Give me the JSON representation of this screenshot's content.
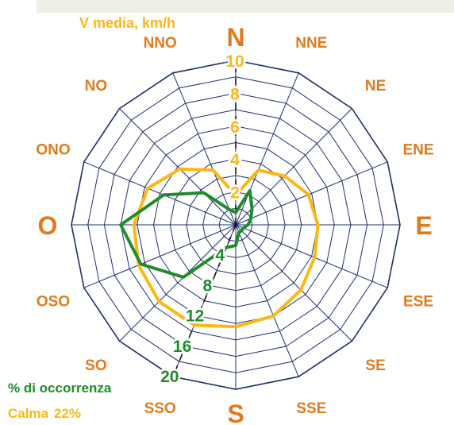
{
  "chart_data": {
    "type": "polar-line",
    "directions": [
      "N",
      "NNE",
      "NE",
      "ENE",
      "E",
      "ESE",
      "SE",
      "SSE",
      "S",
      "SSO",
      "SO",
      "OSO",
      "O",
      "ONO",
      "NO",
      "NNO"
    ],
    "speed_axis": {
      "label": "V media, km/h",
      "ticks": [
        "2",
        "4",
        "6",
        "8",
        "10"
      ],
      "range": [
        0,
        10
      ]
    },
    "occurrence_axis": {
      "label": "% di occorrenza",
      "ticks": [
        "4",
        "8",
        "12",
        "16",
        "20"
      ],
      "range": [
        0,
        20
      ]
    },
    "series": [
      {
        "color": "#fcb713",
        "values": [
          1.8,
          3.6,
          4.2,
          4.8,
          5.0,
          5.2,
          5.6,
          6.0,
          6.2,
          6.6,
          6.6,
          6.4,
          6.2,
          5.8,
          4.8,
          3.6
        ]
      },
      {
        "color": "#1e8c2a",
        "values": [
          1.5,
          4.5,
          2.8,
          2.0,
          1.5,
          1.0,
          1.0,
          1.0,
          2.5,
          3.0,
          9.0,
          12.5,
          14.0,
          9.5,
          5.5,
          2.0
        ]
      }
    ],
    "calm": {
      "label": "Calma",
      "value": "22%"
    },
    "colors": {
      "grid": "#1f2f6e",
      "direction_labels": "#e07a1c",
      "speed": "#fcb713",
      "occurrence": "#1e8c2a"
    }
  }
}
